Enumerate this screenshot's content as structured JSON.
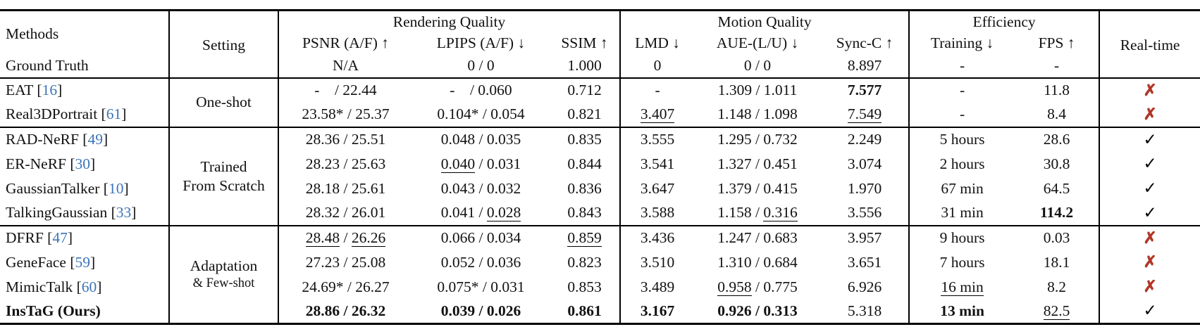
{
  "colors": {
    "citation_blue": "#3b74b8",
    "cross_red": "#b13626",
    "check_black": "#000000",
    "text": "#111111",
    "rule": "#000000"
  },
  "table": {
    "headers": {
      "methods": "Methods",
      "setting": "Setting",
      "realtime": "Real-time",
      "metrics": [
        "PSNR (A/F) ↑",
        "LPIPS (A/F) ↓",
        "SSIM ↑",
        "LMD ↓",
        "AUE-(L/U) ↓",
        "Sync-C ↑",
        "Training ↓",
        "FPS ↑"
      ]
    },
    "column_groups": [
      {
        "label": "Rendering Quality",
        "span": 3
      },
      {
        "label": "Motion Quality",
        "span": 3
      },
      {
        "label": "Efficiency",
        "span": 2
      }
    ],
    "ground_truth": {
      "label": "Ground Truth",
      "values": [
        "N/A",
        "0 / 0",
        "1.000",
        "0",
        "0 / 0",
        "8.897",
        "-",
        "-"
      ]
    },
    "realtime_glyphs": {
      "yes": "✓",
      "no": "✗"
    },
    "cell_names": [
      "cell-psnr",
      "cell-lpips",
      "cell-ssim",
      "cell-lmd",
      "cell-aue",
      "cell-sync-c",
      "cell-training",
      "cell-fps"
    ],
    "groups": [
      {
        "setting_lines": [
          [
            "One-shot",
            ""
          ]
        ],
        "rows": [
          {
            "name": "EAT",
            "ref": "16",
            "style": "",
            "realtime": "no",
            "cells": [
              [
                [
                  "-  / 22.44",
                  ""
                ]
              ],
              [
                [
                  "-  / 0.060",
                  ""
                ]
              ],
              [
                [
                  "0.712",
                  ""
                ]
              ],
              [
                [
                  "-",
                  ""
                ]
              ],
              [
                [
                  "1.309 / 1.011",
                  ""
                ]
              ],
              [
                [
                  "7.577",
                  "b"
                ]
              ],
              [
                [
                  "-",
                  ""
                ]
              ],
              [
                [
                  "11.8",
                  ""
                ]
              ]
            ]
          },
          {
            "name": "Real3DPortrait",
            "ref": "61",
            "style": "",
            "realtime": "no",
            "cells": [
              [
                [
                  "23.58* / 25.37",
                  ""
                ]
              ],
              [
                [
                  "0.104* / 0.054",
                  ""
                ]
              ],
              [
                [
                  "0.821",
                  ""
                ]
              ],
              [
                [
                  "3.407",
                  "u"
                ]
              ],
              [
                [
                  "1.148 / 1.098",
                  ""
                ]
              ],
              [
                [
                  "7.549",
                  "u"
                ]
              ],
              [
                [
                  "-",
                  ""
                ]
              ],
              [
                [
                  "8.4",
                  ""
                ]
              ]
            ]
          }
        ]
      },
      {
        "setting_lines": [
          [
            "Trained",
            ""
          ],
          [
            "From Scratch",
            ""
          ]
        ],
        "rows": [
          {
            "name": "RAD-NeRF",
            "ref": "49",
            "style": "",
            "realtime": "yes",
            "cells": [
              [
                [
                  "28.36 / 25.51",
                  ""
                ]
              ],
              [
                [
                  "0.048 / 0.035",
                  ""
                ]
              ],
              [
                [
                  "0.835",
                  ""
                ]
              ],
              [
                [
                  "3.555",
                  ""
                ]
              ],
              [
                [
                  "1.295 / 0.732",
                  ""
                ]
              ],
              [
                [
                  "2.249",
                  ""
                ]
              ],
              [
                [
                  "5 hours",
                  ""
                ]
              ],
              [
                [
                  "28.6",
                  ""
                ]
              ]
            ]
          },
          {
            "name": "ER-NeRF",
            "ref": "30",
            "style": "",
            "realtime": "yes",
            "cells": [
              [
                [
                  "28.23 / 25.63",
                  ""
                ]
              ],
              [
                [
                  "0.040",
                  "u"
                ],
                [
                  " / 0.031",
                  ""
                ]
              ],
              [
                [
                  "0.844",
                  ""
                ]
              ],
              [
                [
                  "3.541",
                  ""
                ]
              ],
              [
                [
                  "1.327 / 0.451",
                  ""
                ]
              ],
              [
                [
                  "3.074",
                  ""
                ]
              ],
              [
                [
                  "2 hours",
                  ""
                ]
              ],
              [
                [
                  "30.8",
                  ""
                ]
              ]
            ]
          },
          {
            "name": "GaussianTalker",
            "ref": "10",
            "style": "",
            "realtime": "yes",
            "cells": [
              [
                [
                  "28.18 / 25.61",
                  ""
                ]
              ],
              [
                [
                  "0.043 / 0.032",
                  ""
                ]
              ],
              [
                [
                  "0.836",
                  ""
                ]
              ],
              [
                [
                  "3.647",
                  ""
                ]
              ],
              [
                [
                  "1.379 / 0.415",
                  ""
                ]
              ],
              [
                [
                  "1.970",
                  ""
                ]
              ],
              [
                [
                  "67 min",
                  ""
                ]
              ],
              [
                [
                  "64.5",
                  ""
                ]
              ]
            ]
          },
          {
            "name": "TalkingGaussian",
            "ref": "33",
            "style": "",
            "realtime": "yes",
            "cells": [
              [
                [
                  "28.32 / 26.01",
                  ""
                ]
              ],
              [
                [
                  "0.041 / ",
                  ""
                ],
                [
                  "0.028",
                  "u"
                ]
              ],
              [
                [
                  "0.843",
                  ""
                ]
              ],
              [
                [
                  "3.588",
                  ""
                ]
              ],
              [
                [
                  "1.158 / ",
                  ""
                ],
                [
                  "0.316",
                  "u"
                ]
              ],
              [
                [
                  "3.556",
                  ""
                ]
              ],
              [
                [
                  "31 min",
                  ""
                ]
              ],
              [
                [
                  "114.2",
                  "b"
                ]
              ]
            ]
          }
        ]
      },
      {
        "setting_lines": [
          [
            "Adaptation",
            ""
          ],
          [
            "& Few-shot",
            "sm"
          ]
        ],
        "rows": [
          {
            "name": "DFRF",
            "ref": "47",
            "style": "",
            "realtime": "no",
            "cells": [
              [
                [
                  "28.48",
                  "u"
                ],
                [
                  " / ",
                  ""
                ],
                [
                  "26.26",
                  "u"
                ]
              ],
              [
                [
                  "0.066 / 0.034",
                  ""
                ]
              ],
              [
                [
                  "0.859",
                  "u"
                ]
              ],
              [
                [
                  "3.436",
                  ""
                ]
              ],
              [
                [
                  "1.247 / 0.683",
                  ""
                ]
              ],
              [
                [
                  "3.957",
                  ""
                ]
              ],
              [
                [
                  "9 hours",
                  ""
                ]
              ],
              [
                [
                  "0.03",
                  ""
                ]
              ]
            ]
          },
          {
            "name": "GeneFace",
            "ref": "59",
            "style": "",
            "realtime": "no",
            "cells": [
              [
                [
                  "27.23 / 25.08",
                  ""
                ]
              ],
              [
                [
                  "0.052 / 0.036",
                  ""
                ]
              ],
              [
                [
                  "0.823",
                  ""
                ]
              ],
              [
                [
                  "3.510",
                  ""
                ]
              ],
              [
                [
                  "1.310 / 0.684",
                  ""
                ]
              ],
              [
                [
                  "3.651",
                  ""
                ]
              ],
              [
                [
                  "7 hours",
                  ""
                ]
              ],
              [
                [
                  "18.1",
                  ""
                ]
              ]
            ]
          },
          {
            "name": "MimicTalk",
            "ref": "60",
            "style": "",
            "realtime": "no",
            "cells": [
              [
                [
                  "24.69* / 26.27",
                  ""
                ]
              ],
              [
                [
                  "0.075* / 0.031",
                  ""
                ]
              ],
              [
                [
                  "0.853",
                  ""
                ]
              ],
              [
                [
                  "3.489",
                  ""
                ]
              ],
              [
                [
                  "0.958",
                  "u"
                ],
                [
                  " / 0.775",
                  ""
                ]
              ],
              [
                [
                  "6.926",
                  ""
                ]
              ],
              [
                [
                  "16 min",
                  "u"
                ]
              ],
              [
                [
                  "8.2",
                  ""
                ]
              ]
            ]
          },
          {
            "name": "InsTaG (Ours)",
            "ref": null,
            "style": "b",
            "realtime": "yes",
            "cells": [
              [
                [
                  "28.86 / 26.32",
                  "b"
                ]
              ],
              [
                [
                  "0.039 / 0.026",
                  "b"
                ]
              ],
              [
                [
                  "0.861",
                  "b"
                ]
              ],
              [
                [
                  "3.167",
                  "b"
                ]
              ],
              [
                [
                  "0.926 / 0.313",
                  "b"
                ]
              ],
              [
                [
                  "5.318",
                  ""
                ]
              ],
              [
                [
                  "13 min",
                  "b"
                ]
              ],
              [
                [
                  "82.5",
                  "u"
                ]
              ]
            ]
          }
        ]
      }
    ]
  }
}
